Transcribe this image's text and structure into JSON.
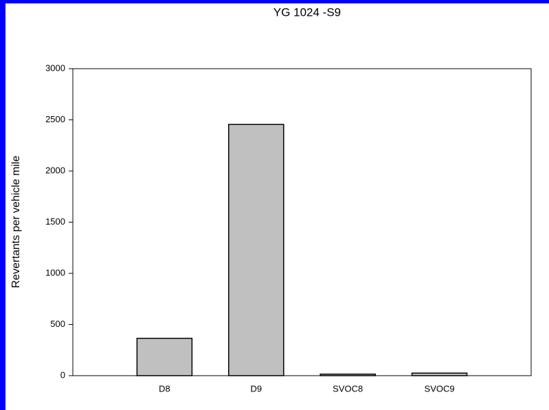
{
  "chart_data": {
    "type": "bar",
    "title": "YG 1024 -S9",
    "ylabel": "Revertants per vehicle mile",
    "categories": [
      "D8",
      "D9",
      "SVOC8",
      "SVOC9"
    ],
    "values": [
      365,
      2455,
      15,
      25
    ],
    "color": "#c0c0c0",
    "ylim": [
      0,
      3000
    ],
    "yticks": [
      0,
      500,
      1000,
      1500,
      2000,
      2500,
      3000
    ],
    "grid": false
  }
}
